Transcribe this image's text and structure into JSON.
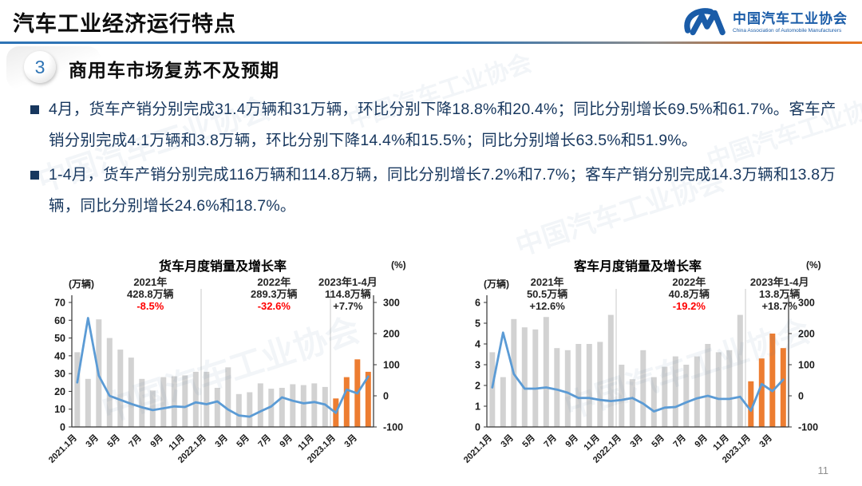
{
  "header": {
    "title": "汽车工业经济运行特点"
  },
  "logo": {
    "zh": "中国汽车工业协会",
    "en": "China Association of Automobile Manufacturers",
    "color": "#1A5CA8"
  },
  "section": {
    "number": "3",
    "heading": "商用车市场复苏不及预期"
  },
  "bullets": [
    {
      "text": "4月，货车产销分别完成31.4万辆和31万辆，环比分别下降18.8%和20.4%；同比分别增长69.5%和61.7%。客车产销分别完成4.1万辆和3.8万辆，环比分别下降14.4%和15.5%；同比分别增长63.5%和51.9%。"
    },
    {
      "text": "1-4月，货车产销分别完成116万辆和114.8万辆，同比分别增长7.2%和7.7%；客车产销分别完成14.3万辆和13.8万辆，同比分别增长24.6%和18.7%。"
    }
  ],
  "footer": {
    "page_number": "11"
  },
  "watermark": {
    "text": "中国汽车工业协会"
  },
  "colors": {
    "bar_gray": "#D2D2D2",
    "bar_orange": "#ED7D31",
    "line_blue": "#5B9BD5",
    "body_text": "#17375E",
    "accent_blue": "#2E74B5",
    "negative_red": "#FF0000",
    "annotation_dark": "#262626"
  },
  "chart_data": [
    {
      "type": "bar",
      "title": "货车月度销量及增长率",
      "left_axis": {
        "label": "(万辆)",
        "min": 0,
        "max": 70,
        "step": 10
      },
      "right_axis": {
        "label": "(%)",
        "min": -100,
        "max": 300,
        "step": 100
      },
      "categories": [
        "2021.1月",
        "2月",
        "3月",
        "4月",
        "5月",
        "6月",
        "7月",
        "8月",
        "9月",
        "10月",
        "11月",
        "12月",
        "2022.1月",
        "2月",
        "3月",
        "4月",
        "5月",
        "6月",
        "7月",
        "8月",
        "9月",
        "10月",
        "11月",
        "12月",
        "2023.1月",
        "2月",
        "3月",
        "4月"
      ],
      "series": [
        {
          "name": "月度销量",
          "kind": "bar",
          "axis": "left",
          "values": [
            42,
            27,
            60.5,
            50,
            43.5,
            39,
            27,
            20.5,
            28,
            28.5,
            29,
            31,
            31,
            22,
            33.5,
            18.5,
            19.5,
            24.5,
            21.5,
            22,
            24,
            23.5,
            24.5,
            22.5,
            16,
            28,
            38,
            31
          ]
        },
        {
          "name": "同比增长率",
          "kind": "line",
          "axis": "right",
          "values": [
            43,
            250,
            65,
            0,
            -13,
            -26,
            -37,
            -46,
            -40,
            -34,
            -36,
            -21,
            -27,
            -18,
            -44,
            -63,
            -67,
            -50,
            -34,
            -5,
            -16,
            -24,
            -20,
            -28,
            -55,
            20,
            8,
            62
          ]
        }
      ],
      "annotations": [
        {
          "title": "2021年",
          "value": "428.8万辆",
          "pct": "-8.5%",
          "pct_color": "#FF0000"
        },
        {
          "title": "2022年",
          "value": "289.3万辆",
          "pct": "-32.6%",
          "pct_color": "#FF0000"
        },
        {
          "title": "2023年1-4月",
          "value": "114.8万辆",
          "pct": "+7.7%",
          "pct_color": "#262626"
        }
      ],
      "grid": false,
      "legend": "none"
    },
    {
      "type": "bar",
      "title": "客车月度销量及增长率",
      "left_axis": {
        "label": "(万辆)",
        "min": 0,
        "max": 6,
        "step": 1
      },
      "right_axis": {
        "label": "(%)",
        "min": -100,
        "max": 300,
        "step": 100
      },
      "categories": [
        "2021.1月",
        "2月",
        "3月",
        "4月",
        "5月",
        "6月",
        "7月",
        "8月",
        "9月",
        "10月",
        "11月",
        "12月",
        "2022.1月",
        "2月",
        "3月",
        "4月",
        "5月",
        "6月",
        "7月",
        "8月",
        "9月",
        "10月",
        "11月",
        "12月",
        "2023.1月",
        "2月",
        "3月",
        "4月"
      ],
      "series": [
        {
          "name": "月度销量",
          "kind": "bar",
          "axis": "left",
          "values": [
            3.6,
            2.4,
            5.2,
            4.8,
            4.7,
            5.3,
            3.8,
            3.7,
            4.0,
            4.0,
            4.1,
            5.4,
            3.0,
            2.3,
            3.7,
            2.4,
            2.9,
            3.4,
            3.0,
            3.4,
            4.0,
            3.6,
            3.7,
            5.4,
            2.2,
            3.3,
            4.5,
            3.8
          ]
        },
        {
          "name": "同比增长率",
          "kind": "line",
          "axis": "right",
          "values": [
            27,
            203,
            70,
            23,
            23,
            27,
            20,
            10,
            -7,
            -7,
            -13,
            -17,
            -13,
            -7,
            -25,
            -50,
            -38,
            -36,
            -21,
            -8,
            0,
            -10,
            -10,
            -3,
            -48,
            38,
            15,
            52
          ]
        }
      ],
      "annotations": [
        {
          "title": "2021年",
          "value": "50.5万辆",
          "pct": "+12.6%",
          "pct_color": "#262626"
        },
        {
          "title": "2022年",
          "value": "40.8万辆",
          "pct": "-19.2%",
          "pct_color": "#FF0000"
        },
        {
          "title": "2023年1-4月",
          "value": "13.8万辆",
          "pct": "+18.7%",
          "pct_color": "#262626"
        }
      ],
      "grid": false,
      "legend": "none"
    }
  ]
}
